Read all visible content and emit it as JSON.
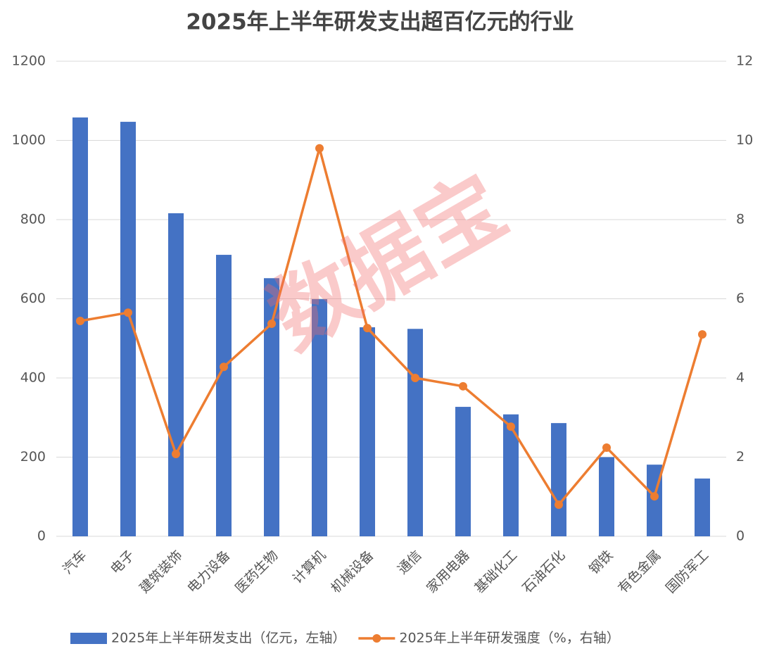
{
  "chart_data": {
    "type": "bar",
    "title": "2025年上半年研发支出超百亿元的行业",
    "watermark": "数据宝",
    "categories": [
      "汽车",
      "电子",
      "建筑装饰",
      "电力设备",
      "医药生物",
      "计算机",
      "机械设备",
      "通信",
      "家用电器",
      "基础化工",
      "石油石化",
      "钢铁",
      "有色金属",
      "国防军工"
    ],
    "series": [
      {
        "name": "2025年上半年研发支出（亿元，左轴）",
        "type": "bar",
        "color": "#4472c4",
        "axis": "y",
        "values": [
          1058,
          1047,
          816,
          711,
          652,
          599,
          528,
          524,
          327,
          308,
          286,
          200,
          181,
          146
        ]
      },
      {
        "name": "2025年上半年研发强度（%，右轴）",
        "type": "line",
        "color": "#ed7d31",
        "axis": "y2",
        "values": [
          5.44,
          5.65,
          2.08,
          4.28,
          5.37,
          9.8,
          5.26,
          4.0,
          3.79,
          2.77,
          0.8,
          2.24,
          1.01,
          5.1
        ]
      }
    ],
    "ylim": [
      0,
      1200
    ],
    "yticks": [
      0,
      200,
      400,
      600,
      800,
      1000,
      1200
    ],
    "y2lim": [
      0,
      12
    ],
    "y2ticks": [
      0,
      2,
      4,
      6,
      8,
      10,
      12
    ],
    "grid": true,
    "legend": "bottom"
  }
}
